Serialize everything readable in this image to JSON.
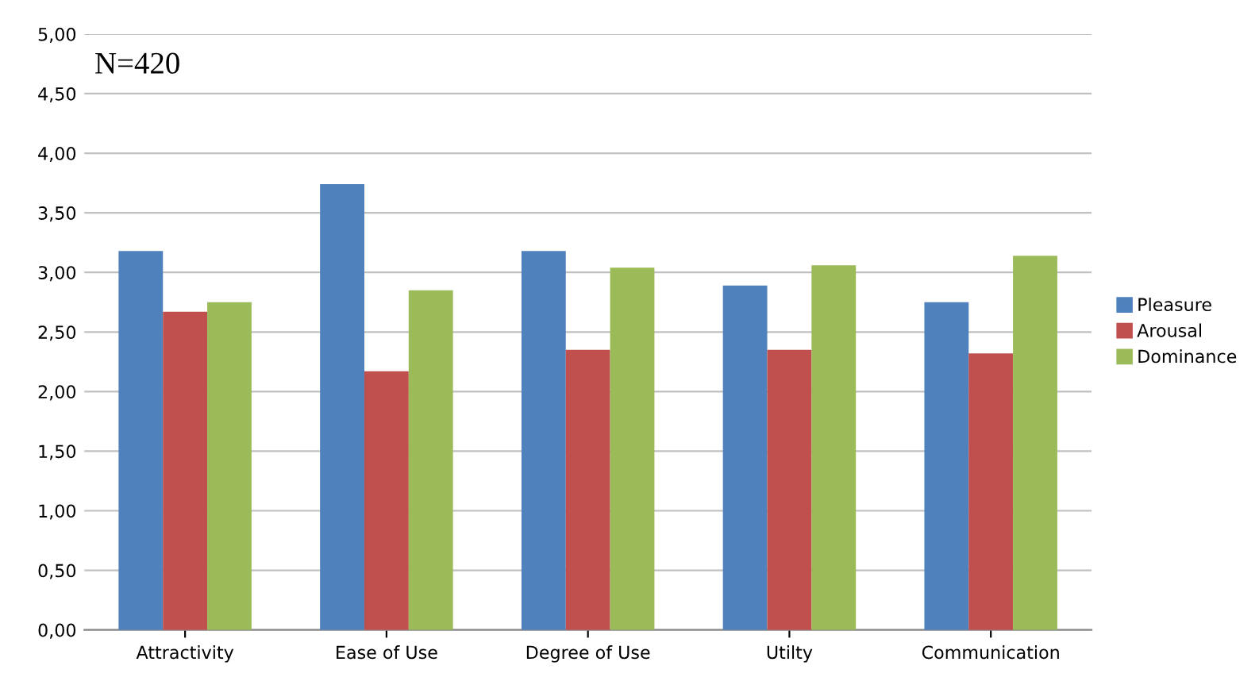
{
  "chart_data": {
    "type": "bar",
    "categories": [
      "Attractivity",
      "Ease of Use",
      "Degree of Use",
      "Utilty",
      "Communication"
    ],
    "series": [
      {
        "name": "Pleasure",
        "color": "#4f81bd",
        "values": [
          3.18,
          3.74,
          3.18,
          2.89,
          2.75
        ]
      },
      {
        "name": "Arousal",
        "color": "#c0504d",
        "values": [
          2.67,
          2.17,
          2.35,
          2.35,
          2.32
        ]
      },
      {
        "name": "Dominance",
        "color": "#9bbb59",
        "values": [
          2.75,
          2.85,
          3.04,
          3.06,
          3.14
        ]
      }
    ],
    "ylim": [
      0,
      5
    ],
    "yticks": [
      {
        "value": 0,
        "label": "0,00"
      },
      {
        "value": 0.5,
        "label": "0,50"
      },
      {
        "value": 1,
        "label": "1,00"
      },
      {
        "value": 1.5,
        "label": "1,50"
      },
      {
        "value": 2,
        "label": "2,00"
      },
      {
        "value": 2.5,
        "label": "2,50"
      },
      {
        "value": 3,
        "label": "3,00"
      },
      {
        "value": 3.5,
        "label": "3,50"
      },
      {
        "value": 4,
        "label": "4,00"
      },
      {
        "value": 4.5,
        "label": "4,50"
      },
      {
        "value": 5,
        "label": "5,00"
      }
    ],
    "grid": "y",
    "legend": "right",
    "annotations": [
      "N=420"
    ]
  }
}
